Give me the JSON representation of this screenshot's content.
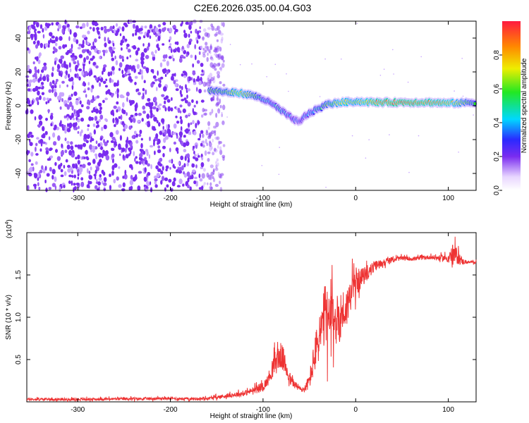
{
  "title": "C2E6.2026.035.00.04.G03",
  "colors": {
    "snr_line": "#ee3333",
    "axis": "#000000",
    "speckle": "#7a2cf0",
    "speckle_light": "#c9a6ff"
  },
  "colormap": [
    {
      "stop": 0.0,
      "color": "#ffffff"
    },
    {
      "stop": 0.08,
      "color": "#e8d6ff"
    },
    {
      "stop": 0.2,
      "color": "#7a2cf0"
    },
    {
      "stop": 0.3,
      "color": "#2a2aff"
    },
    {
      "stop": 0.42,
      "color": "#00d8ff"
    },
    {
      "stop": 0.58,
      "color": "#22e822"
    },
    {
      "stop": 0.72,
      "color": "#eeee00"
    },
    {
      "stop": 0.85,
      "color": "#ff8800"
    },
    {
      "stop": 1.0,
      "color": "#ff1a40"
    }
  ],
  "chart_data": [
    {
      "type": "heatmap",
      "name": "spectrogram",
      "xlabel": "Height of straight line (km)",
      "ylabel": "Frequency (Hz)",
      "xlim": [
        -355,
        130
      ],
      "ylim": [
        -50,
        50
      ],
      "xticks": [
        -300,
        -200,
        -100,
        0,
        100
      ],
      "yticks": [
        -40,
        -20,
        0,
        20,
        40
      ],
      "noise_region_x": [
        -355,
        -150
      ],
      "ridge": {
        "x": [
          -155,
          -140,
          -125,
          -110,
          -100,
          -90,
          -80,
          -70,
          -60,
          -55,
          -45,
          -30,
          -15,
          0,
          20,
          50,
          80,
          100,
          130
        ],
        "y": [
          9,
          8,
          7.5,
          6,
          4,
          1,
          -3,
          -7,
          -10,
          -6,
          -3,
          1,
          2,
          2.5,
          2,
          2,
          2,
          1.5,
          2
        ],
        "amplitude": [
          0.55,
          0.6,
          0.75,
          0.6,
          0.45,
          0.4,
          0.45,
          0.35,
          0.3,
          0.35,
          0.45,
          0.6,
          0.75,
          0.7,
          0.85,
          0.9,
          0.85,
          0.8,
          0.5
        ]
      },
      "colorbar": {
        "label": "Normalized spectral amplitude",
        "range": [
          0,
          1
        ],
        "ticks": [
          0.0,
          0.2,
          0.4,
          0.6,
          0.8
        ]
      }
    },
    {
      "type": "line",
      "name": "snr",
      "xlabel": "Height of straight line (km)",
      "ylabel": "SNR (10 * v/v)",
      "scale_label": "(x10",
      "scale_exponent": "4",
      "scale_suffix": ")",
      "xlim": [
        -355,
        130
      ],
      "ylim": [
        0,
        20000
      ],
      "xticks": [
        -300,
        -200,
        -100,
        0,
        100
      ],
      "yticks": [
        5000,
        10000,
        15000
      ],
      "ytick_labels": [
        "0.5",
        "1.0",
        "1.5"
      ],
      "series": [
        {
          "name": "SNR",
          "x": [
            -355,
            -300,
            -250,
            -200,
            -180,
            -160,
            -140,
            -120,
            -110,
            -100,
            -95,
            -90,
            -85,
            -80,
            -75,
            -70,
            -65,
            -60,
            -55,
            -50,
            -45,
            -40,
            -35,
            -32,
            -30,
            -25,
            -20,
            -15,
            -10,
            -5,
            0,
            10,
            20,
            30,
            40,
            50,
            60,
            70,
            80,
            90,
            100,
            105,
            110,
            115,
            120,
            130
          ],
          "y": [
            300,
            300,
            350,
            400,
            350,
            400,
            700,
            1000,
            1400,
            1800,
            2500,
            4000,
            5000,
            5500,
            4000,
            2500,
            2000,
            1500,
            1500,
            2500,
            5000,
            7500,
            9000,
            11000,
            9000,
            10000,
            9500,
            10500,
            11000,
            13000,
            14000,
            15000,
            16000,
            16500,
            16800,
            17000,
            16900,
            17000,
            17100,
            17000,
            17000,
            17500,
            17200,
            16600,
            16500,
            16500
          ],
          "noise": [
            200,
            200,
            200,
            200,
            200,
            200,
            300,
            400,
            500,
            700,
            800,
            1500,
            2000,
            2000,
            1500,
            800,
            600,
            500,
            500,
            1200,
            2500,
            3500,
            4500,
            5000,
            4500,
            4000,
            4000,
            3500,
            3000,
            2500,
            2000,
            1200,
            800,
            500,
            400,
            300,
            300,
            300,
            300,
            400,
            600,
            1500,
            1200,
            500,
            200,
            200
          ]
        }
      ]
    }
  ]
}
